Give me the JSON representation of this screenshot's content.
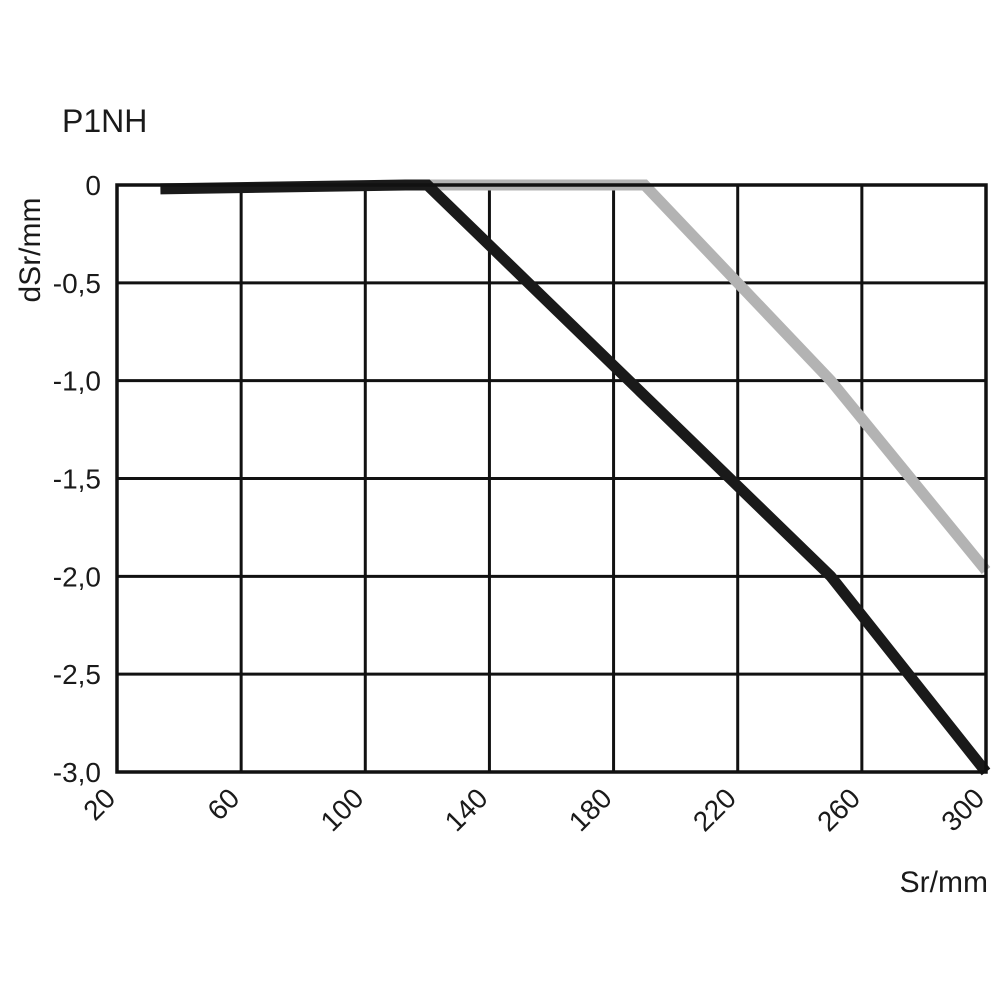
{
  "chart_data": {
    "type": "line",
    "title": "P1NH",
    "xlabel": "Sr/mm",
    "ylabel": "dSr/mm",
    "xlim": [
      20,
      300
    ],
    "ylim": [
      -3.0,
      0
    ],
    "x_ticks": [
      20,
      60,
      100,
      140,
      180,
      220,
      260,
      300
    ],
    "x_tick_labels": [
      "20",
      "60",
      "100",
      "140",
      "180",
      "220",
      "260",
      "300"
    ],
    "y_ticks": [
      0,
      -0.5,
      -1.0,
      -1.5,
      -2.0,
      -2.5,
      -3.0
    ],
    "y_tick_labels": [
      "0",
      "-0,5",
      "-1,0",
      "-1,5",
      "-2,0",
      "-2,5",
      "-3,0"
    ],
    "grid": true,
    "series": [
      {
        "color": "#b3b3b3",
        "x": [
          113,
          190,
          250,
          300
        ],
        "y": [
          0,
          0,
          -1.0,
          -1.97
        ]
      },
      {
        "color": "#1a1a1a",
        "x": [
          34,
          113,
          120,
          185,
          250,
          300
        ],
        "y": [
          -0.02,
          0,
          0,
          -1.0,
          -2.0,
          -3.0
        ]
      }
    ]
  }
}
